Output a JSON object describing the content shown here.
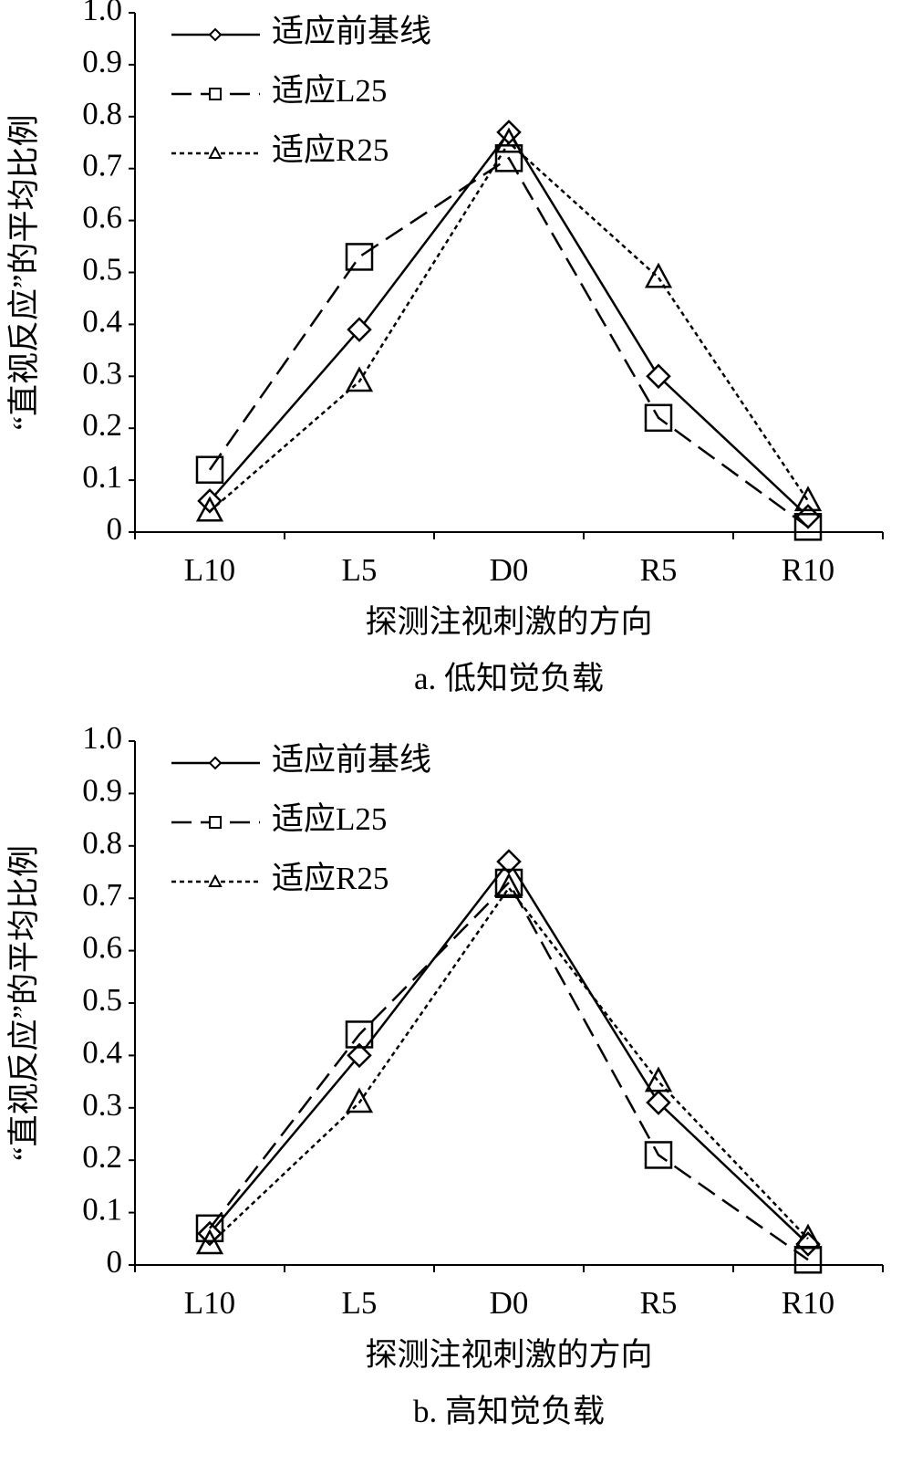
{
  "chart_data": [
    {
      "type": "line",
      "caption": "a. 低知觉负载",
      "x_label": "探测注视刺激的方向",
      "y_label": "“直视反应”的平均比例",
      "categories": [
        "L10",
        "L5",
        "D0",
        "R5",
        "R10"
      ],
      "ylim": [
        0,
        1
      ],
      "yticks": [
        0,
        0.1,
        0.2,
        0.3,
        0.4,
        0.5,
        0.6,
        0.7,
        0.8,
        0.9,
        {
          "value": 1,
          "label": "1.0"
        }
      ],
      "legend": "upper left",
      "series": [
        {
          "name": "适应前基线",
          "color": "#000000",
          "dash": "solid",
          "marker": "diamond",
          "values": [
            0.06,
            0.39,
            0.77,
            0.3,
            0.03
          ]
        },
        {
          "name": "适应L25",
          "color": "#000000",
          "dash": "dashed",
          "marker": "square",
          "values": [
            0.12,
            0.53,
            0.72,
            0.22,
            0.01
          ]
        },
        {
          "name": "适应R25",
          "color": "#000000",
          "dash": "dotted",
          "marker": "triangle",
          "values": [
            0.04,
            0.29,
            0.75,
            0.49,
            0.06
          ]
        }
      ]
    },
    {
      "type": "line",
      "caption": "b. 高知觉负载",
      "x_label": "探测注视刺激的方向",
      "y_label": "“直视反应”的平均比例",
      "categories": [
        "L10",
        "L5",
        "D0",
        "R5",
        "R10"
      ],
      "ylim": [
        0,
        1
      ],
      "yticks": [
        0,
        0.1,
        0.2,
        0.3,
        0.4,
        0.5,
        0.6,
        0.7,
        0.8,
        0.9,
        {
          "value": 1,
          "label": "1.0"
        }
      ],
      "legend": "upper left",
      "series": [
        {
          "name": "适应前基线",
          "color": "#000000",
          "dash": "solid",
          "marker": "diamond",
          "values": [
            0.06,
            0.4,
            0.77,
            0.31,
            0.04
          ]
        },
        {
          "name": "适应L25",
          "color": "#000000",
          "dash": "dashed",
          "marker": "square",
          "values": [
            0.07,
            0.44,
            0.73,
            0.21,
            0.01
          ]
        },
        {
          "name": "适应R25",
          "color": "#000000",
          "dash": "dotted",
          "marker": "triangle",
          "values": [
            0.04,
            0.31,
            0.72,
            0.35,
            0.05
          ]
        }
      ]
    }
  ]
}
